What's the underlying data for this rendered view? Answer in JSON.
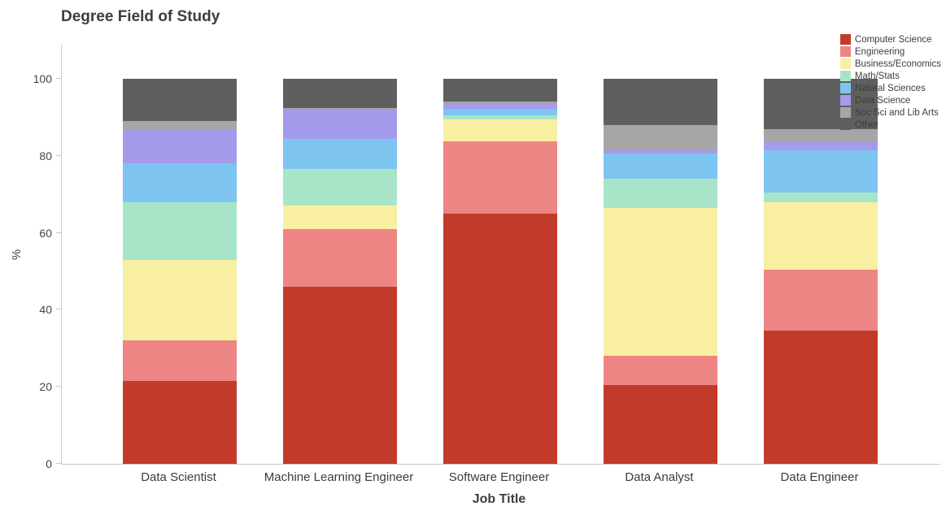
{
  "chart_data": {
    "type": "bar",
    "stacked": true,
    "title": "Degree Field of Study",
    "xlabel": "Job Title",
    "ylabel": "%",
    "ylim": [
      0,
      100
    ],
    "yticks": [
      0,
      20,
      40,
      60,
      80,
      100
    ],
    "grid": false,
    "legend_position": "top-right",
    "categories": [
      "Data Scientist",
      "Machine Learning Engineer",
      "Software Engineer",
      "Data Analyst",
      "Data Engineer"
    ],
    "series": [
      {
        "name": "Computer Science",
        "color": "#c23b2a",
        "values": [
          21.5,
          46,
          65,
          20.5,
          34.5
        ]
      },
      {
        "name": "Engineering",
        "color": "#ee8585",
        "values": [
          10.5,
          15,
          18.8,
          7.5,
          16
        ]
      },
      {
        "name": "Business/Economics",
        "color": "#f9efa2",
        "values": [
          21,
          6,
          5.7,
          38.5,
          17.5
        ]
      },
      {
        "name": "Math/Stats",
        "color": "#a8e5c8",
        "values": [
          15,
          9.5,
          1,
          7.5,
          2.5
        ]
      },
      {
        "name": "Natural Sciences",
        "color": "#7ec4f0",
        "values": [
          10,
          8,
          1.7,
          6.5,
          11
        ]
      },
      {
        "name": "Data Science",
        "color": "#a49ceb",
        "values": [
          9,
          7.5,
          1.3,
          1,
          2
        ]
      },
      {
        "name": "Soc Sci and Lib Arts",
        "color": "#a6a6a6",
        "values": [
          2,
          0.5,
          0.5,
          6.5,
          3.5
        ]
      },
      {
        "name": "Other",
        "color": "#5f5f5f",
        "values": [
          11,
          7.5,
          6,
          12,
          13
        ]
      }
    ]
  }
}
